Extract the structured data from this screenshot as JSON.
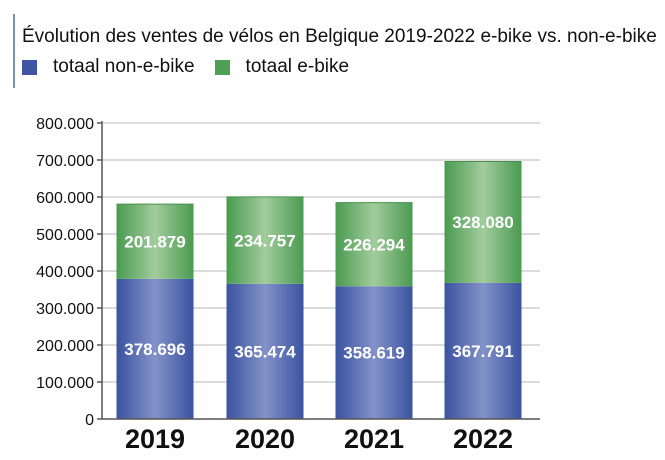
{
  "chart_data": {
    "type": "bar",
    "stacked": true,
    "title": "Évolution des ventes de vélos en Belgique 2019-2022 e-bike vs. non-e-bike",
    "categories": [
      "2019",
      "2020",
      "2021",
      "2022"
    ],
    "series": [
      {
        "name": "totaal non-e-bike",
        "color": "#3e56a2",
        "values": [
          378696,
          365474,
          358619,
          367791
        ],
        "labels": [
          "378.696",
          "365.474",
          "358.619",
          "367.791"
        ]
      },
      {
        "name": "totaal e-bike",
        "color": "#4f9f56",
        "values": [
          201879,
          234757,
          226294,
          328080
        ],
        "labels": [
          "201.879",
          "234.757",
          "226.294",
          "328.080"
        ]
      }
    ],
    "ylim": [
      0,
      800000
    ],
    "yticks": [
      0,
      100000,
      200000,
      300000,
      400000,
      500000,
      600000,
      700000,
      800000
    ],
    "ytick_labels": [
      "0",
      "100.000",
      "200.000",
      "300.000",
      "400.000",
      "500.000",
      "600.000",
      "700.000",
      "800.000"
    ],
    "grid": true,
    "legend_position": "top-left"
  }
}
